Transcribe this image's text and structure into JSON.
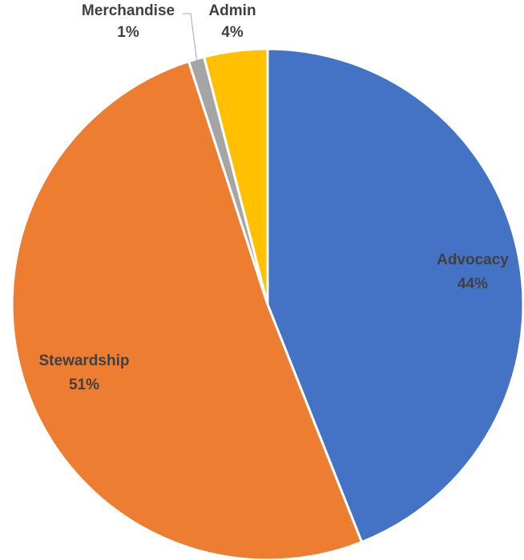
{
  "chart_data": {
    "type": "pie",
    "title": "",
    "slices": [
      {
        "label": "Advocacy",
        "value": 44,
        "percent_label": "44%",
        "color": "#4472C4"
      },
      {
        "label": "Stewardship",
        "value": 51,
        "percent_label": "51%",
        "color": "#ED7D31"
      },
      {
        "label": "Merchandise",
        "value": 1,
        "percent_label": "1%",
        "color": "#A5A5A5"
      },
      {
        "label": "Admin",
        "value": 4,
        "percent_label": "4%",
        "color": "#FFC000"
      }
    ],
    "start_angle": "12 o'clock",
    "direction": "clockwise",
    "legend": "none",
    "data_labels": "category name and percentage"
  }
}
